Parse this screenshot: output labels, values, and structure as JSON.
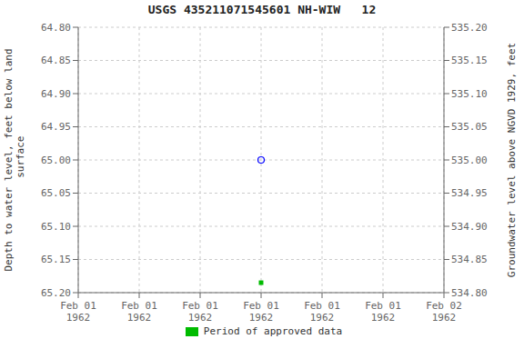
{
  "chart_data": {
    "type": "scatter",
    "title": "USGS 435211071545601 NH-WIW   12",
    "ylabel": "Depth to water level, feet below land\n surface",
    "y2label": "Groundwater level above NGVD 1929, feet",
    "categories": [
      "Feb 01\n1962",
      "Feb 01\n1962",
      "Feb 01\n1962",
      "Feb 01\n1962",
      "Feb 01\n1962",
      "Feb 01\n1962",
      "Feb 02\n1962"
    ],
    "series": [
      {
        "color": "blue",
        "marker": "circle",
        "values": [
          null,
          null,
          null,
          65.0,
          null,
          null,
          null
        ]
      },
      {
        "name": "Period of approved data",
        "color": "#00bb00",
        "marker": "square",
        "values": [
          null,
          null,
          null,
          65.185,
          null,
          null,
          null
        ]
      }
    ],
    "ylim": [
      65.2,
      64.8
    ],
    "yticks": [
      {
        "value": 64.8,
        "label": "64.80"
      },
      {
        "value": 64.85,
        "label": "64.85"
      },
      {
        "value": 64.9,
        "label": "64.90"
      },
      {
        "value": 64.95,
        "label": "64.95"
      },
      {
        "value": 65.0,
        "label": "65.00"
      },
      {
        "value": 65.05,
        "label": "65.05"
      },
      {
        "value": 65.1,
        "label": "65.10"
      },
      {
        "value": 65.15,
        "label": "65.15"
      },
      {
        "value": 65.2,
        "label": "65.20"
      }
    ],
    "y2lim": [
      534.8,
      535.2
    ],
    "y2ticks": [
      {
        "value": 535.2,
        "label": "535.20"
      },
      {
        "value": 535.15,
        "label": "535.15"
      },
      {
        "value": 535.1,
        "label": "535.10"
      },
      {
        "value": 535.05,
        "label": "535.05"
      },
      {
        "value": 535.0,
        "label": "535.00"
      },
      {
        "value": 534.95,
        "label": "534.95"
      },
      {
        "value": 534.9,
        "label": "534.90"
      },
      {
        "value": 534.85,
        "label": "534.85"
      },
      {
        "value": 534.8,
        "label": "534.80"
      }
    ],
    "grid": true,
    "legend": "bottom"
  }
}
